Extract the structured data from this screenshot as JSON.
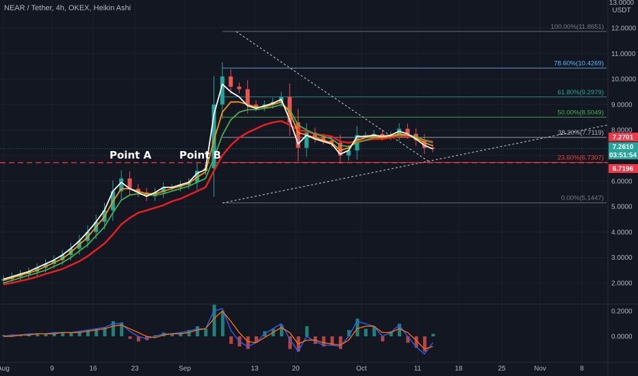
{
  "header": {
    "title": "NEAR / Tether, 4h, OKEX, Heikin Ashi",
    "currency": "USDT",
    "top_tick": "13.0000"
  },
  "chart_data": {
    "type": "candlestick",
    "y_axis": {
      "range": [
        1.55,
        13.05
      ],
      "ticks": [
        "12.0000",
        "11.0000",
        "10.0000",
        "9.0000",
        "8.0000",
        "7.0000",
        "6.0000",
        "5.0000",
        "4.0000",
        "3.0000",
        "2.0000"
      ]
    },
    "x_axis": {
      "ticks": [
        "Aug",
        "9",
        "16",
        "23",
        "Sep",
        "13",
        "20",
        "Oct",
        "11",
        "18",
        "25",
        "Nov",
        "8"
      ]
    },
    "fib_levels": [
      {
        "label": "100.00%(11.8651)",
        "value": 11.8651,
        "color": "#787b86"
      },
      {
        "label": "78.60%(10.4269)",
        "value": 10.4269,
        "color": "#64b5f6"
      },
      {
        "label": "61.80%(9.2979)",
        "value": 9.2979,
        "color": "#26a69a"
      },
      {
        "label": "50.00%(8.5049)",
        "value": 8.5049,
        "color": "#4caf50"
      },
      {
        "label": "38.20%(7.7119)",
        "value": 7.7119,
        "color": "#b2b5be"
      },
      {
        "label": "23.60%(6.7307)",
        "value": 6.7307,
        "color": "#f44336"
      },
      {
        "label": "0.00%(5.1447)",
        "value": 5.1447,
        "color": "#787b86"
      }
    ],
    "price_tags": [
      {
        "label": "7.2701",
        "value": 7.2701,
        "color": "#f23645"
      },
      {
        "label": "7.2610",
        "value": 7.261,
        "color": "#26a69a"
      },
      {
        "label": "03:51:54",
        "value": 7.261,
        "color": "#26a69a"
      },
      {
        "label": "6.7196",
        "value": 6.7196,
        "color": "#f23645"
      }
    ],
    "support_level": 6.7196,
    "annotations": [
      "Point A",
      "Point B"
    ],
    "oscillator": {
      "ticks": [
        "0.2000",
        "0.0000"
      ],
      "range": [
        -0.22,
        0.3
      ]
    },
    "close": [
      2.15,
      2.25,
      2.35,
      2.45,
      2.6,
      2.75,
      2.9,
      3.1,
      3.35,
      3.65,
      4.0,
      4.4,
      4.85,
      5.6,
      6.1,
      5.7,
      5.55,
      5.4,
      5.55,
      5.75,
      5.75,
      5.85,
      5.95,
      6.4,
      6.5,
      9.0,
      10.1,
      9.7,
      9.6,
      9.0,
      8.9,
      9.0,
      9.1,
      9.3,
      8.3,
      7.3,
      7.9,
      7.7,
      7.6,
      7.5,
      7.0,
      7.2,
      7.8,
      7.8,
      7.85,
      7.75,
      7.8,
      8.05,
      7.85,
      7.6,
      7.3,
      7.26
    ],
    "ma_white": [
      2.15,
      2.25,
      2.35,
      2.45,
      2.6,
      2.75,
      2.9,
      3.1,
      3.35,
      3.65,
      4.0,
      4.4,
      4.85,
      5.6,
      5.95,
      5.7,
      5.55,
      5.4,
      5.55,
      5.75,
      5.75,
      5.85,
      5.95,
      6.3,
      6.45,
      8.6,
      9.8,
      9.5,
      9.3,
      8.95,
      8.85,
      8.95,
      9.05,
      9.2,
      8.4,
      7.45,
      7.8,
      7.65,
      7.55,
      7.45,
      7.05,
      7.2,
      7.75,
      7.75,
      7.8,
      7.75,
      7.8,
      7.95,
      7.85,
      7.65,
      7.4,
      7.26
    ],
    "ma_orange": [
      2.1,
      2.2,
      2.3,
      2.4,
      2.5,
      2.65,
      2.8,
      2.95,
      3.2,
      3.5,
      3.8,
      4.2,
      4.6,
      5.2,
      5.7,
      5.7,
      5.6,
      5.5,
      5.5,
      5.6,
      5.7,
      5.8,
      5.9,
      6.15,
      6.35,
      7.6,
      8.7,
      9.1,
      9.1,
      9.0,
      8.9,
      8.9,
      9.0,
      9.1,
      8.7,
      7.9,
      7.8,
      7.7,
      7.6,
      7.5,
      7.2,
      7.3,
      7.6,
      7.7,
      7.75,
      7.7,
      7.75,
      7.85,
      7.8,
      7.7,
      7.5,
      7.38
    ],
    "ma_green": [
      2.0,
      2.1,
      2.2,
      2.3,
      2.4,
      2.5,
      2.65,
      2.8,
      3.0,
      3.25,
      3.5,
      3.85,
      4.2,
      4.75,
      5.25,
      5.45,
      5.5,
      5.45,
      5.45,
      5.5,
      5.6,
      5.7,
      5.8,
      5.95,
      6.1,
      6.9,
      7.8,
      8.4,
      8.7,
      8.8,
      8.8,
      8.85,
      8.9,
      9.0,
      8.8,
      8.2,
      8.0,
      7.85,
      7.75,
      7.65,
      7.4,
      7.35,
      7.5,
      7.6,
      7.7,
      7.7,
      7.75,
      7.8,
      7.8,
      7.75,
      7.6,
      7.5
    ],
    "ma_red": [
      1.95,
      2.0,
      2.08,
      2.15,
      2.25,
      2.35,
      2.45,
      2.55,
      2.7,
      2.85,
      3.05,
      3.3,
      3.55,
      3.9,
      4.3,
      4.55,
      4.75,
      4.85,
      4.95,
      5.05,
      5.2,
      5.3,
      5.45,
      5.6,
      5.75,
      6.4,
      7.0,
      7.4,
      7.7,
      7.9,
      8.05,
      8.2,
      8.3,
      8.35,
      8.2,
      8.0,
      7.95,
      7.85,
      7.8,
      7.75,
      7.55,
      7.5,
      7.55,
      7.6,
      7.65,
      7.65,
      7.7,
      7.75,
      7.75,
      7.7,
      7.6,
      7.55
    ],
    "osc_hist": [
      0.01,
      0.015,
      0.01,
      0.02,
      0.025,
      0.02,
      0.03,
      0.035,
      0.03,
      0.04,
      0.05,
      0.06,
      0.07,
      0.12,
      0.11,
      -0.02,
      -0.04,
      -0.03,
      0.01,
      0.03,
      0.02,
      0.03,
      0.05,
      0.08,
      0.06,
      0.25,
      0.2,
      -0.06,
      -0.08,
      -0.1,
      -0.05,
      0.04,
      0.06,
      0.09,
      -0.1,
      -0.12,
      0.08,
      -0.06,
      -0.08,
      -0.07,
      -0.1,
      0.05,
      0.14,
      0.06,
      0.08,
      -0.04,
      0.04,
      0.1,
      -0.05,
      -0.09,
      -0.12,
      0.02
    ],
    "osc_blue": [
      0.0,
      0.01,
      0.01,
      0.02,
      0.02,
      0.02,
      0.03,
      0.03,
      0.03,
      0.04,
      0.05,
      0.06,
      0.07,
      0.1,
      0.1,
      0.04,
      0.0,
      -0.02,
      0.0,
      0.02,
      0.02,
      0.03,
      0.04,
      0.06,
      0.06,
      0.2,
      0.22,
      0.05,
      -0.04,
      -0.08,
      -0.05,
      0.02,
      0.06,
      0.1,
      -0.02,
      -0.12,
      0.0,
      -0.04,
      -0.07,
      -0.07,
      -0.08,
      0.0,
      0.12,
      0.1,
      0.08,
      0.0,
      0.03,
      0.09,
      0.0,
      -0.08,
      -0.14,
      -0.05
    ],
    "osc_orange": [
      0.0,
      0.0,
      0.01,
      0.01,
      0.02,
      0.02,
      0.02,
      0.03,
      0.03,
      0.03,
      0.04,
      0.05,
      0.06,
      0.08,
      0.09,
      0.06,
      0.03,
      0.0,
      -0.01,
      0.01,
      0.02,
      0.02,
      0.03,
      0.05,
      0.06,
      0.14,
      0.2,
      0.12,
      0.03,
      -0.04,
      -0.05,
      -0.01,
      0.03,
      0.07,
      0.03,
      -0.06,
      -0.03,
      -0.03,
      -0.05,
      -0.06,
      -0.07,
      -0.03,
      0.06,
      0.08,
      0.08,
      0.03,
      0.03,
      0.06,
      0.03,
      -0.03,
      -0.1,
      -0.08
    ]
  }
}
